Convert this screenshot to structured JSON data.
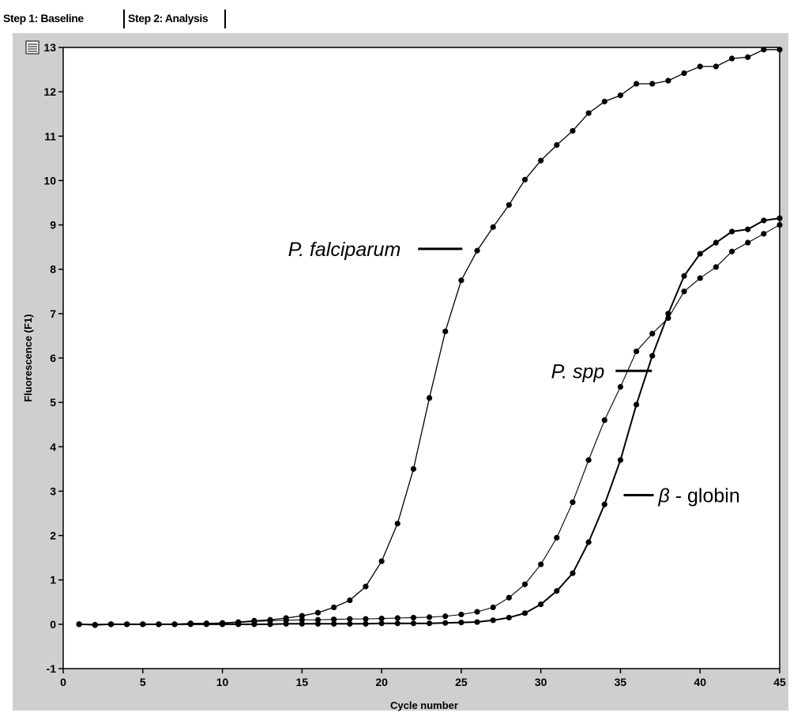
{
  "tabs": [
    {
      "label": "Step 1: Baseline"
    },
    {
      "label": "Step 2: Analysis"
    }
  ],
  "colors": {
    "plot_bg": "#ffffff",
    "frame_bg": "#cfcfcf",
    "line": "#000000"
  },
  "chart_data": {
    "type": "line",
    "title": "",
    "xlabel": "Cycle number",
    "ylabel": "Fluorescence (F1)",
    "xlim": [
      0,
      45
    ],
    "ylim": [
      -1,
      13
    ],
    "xticks": [
      0,
      5,
      10,
      15,
      20,
      25,
      30,
      35,
      40,
      45
    ],
    "yticks": [
      -1,
      0,
      1,
      2,
      3,
      4,
      5,
      6,
      7,
      8,
      9,
      10,
      11,
      12,
      13
    ],
    "grid": false,
    "x": [
      1,
      2,
      3,
      4,
      5,
      6,
      7,
      8,
      9,
      10,
      11,
      12,
      13,
      14,
      15,
      16,
      17,
      18,
      19,
      20,
      21,
      22,
      23,
      24,
      25,
      26,
      27,
      28,
      29,
      30,
      31,
      32,
      33,
      34,
      35,
      36,
      37,
      38,
      39,
      40,
      41,
      42,
      43,
      44,
      45
    ],
    "series": [
      {
        "name": "P. falciparum",
        "values": [
          0.0,
          -0.02,
          0.0,
          0.0,
          0.0,
          0.0,
          0.0,
          0.02,
          0.02,
          0.03,
          0.05,
          0.08,
          0.1,
          0.14,
          0.19,
          0.26,
          0.38,
          0.54,
          0.85,
          1.42,
          2.27,
          3.5,
          5.1,
          6.6,
          7.75,
          8.42,
          8.95,
          9.45,
          10.02,
          10.45,
          10.8,
          11.12,
          11.52,
          11.78,
          11.92,
          12.18,
          12.18,
          12.25,
          12.42,
          12.57,
          12.57,
          12.75,
          12.78,
          12.95,
          12.95
        ]
      },
      {
        "name": "P. spp",
        "values": [
          0.0,
          -0.01,
          0.0,
          0.0,
          0.0,
          0.0,
          0.0,
          0.02,
          0.02,
          0.02,
          0.04,
          0.06,
          0.08,
          0.09,
          0.1,
          0.1,
          0.11,
          0.12,
          0.12,
          0.13,
          0.14,
          0.15,
          0.16,
          0.18,
          0.22,
          0.28,
          0.38,
          0.6,
          0.9,
          1.35,
          1.95,
          2.75,
          3.7,
          4.6,
          5.35,
          6.15,
          6.55,
          6.9,
          7.5,
          7.8,
          8.05,
          8.4,
          8.6,
          8.8,
          9.0
        ]
      },
      {
        "name": "β - globin",
        "values": [
          0.0,
          -0.01,
          0.0,
          0.0,
          0.0,
          0.0,
          0.0,
          0.0,
          0.0,
          0.0,
          0.0,
          0.0,
          0.0,
          0.01,
          0.01,
          0.01,
          0.01,
          0.01,
          0.01,
          0.02,
          0.02,
          0.02,
          0.02,
          0.03,
          0.04,
          0.05,
          0.09,
          0.15,
          0.25,
          0.45,
          0.75,
          1.15,
          1.85,
          2.7,
          3.7,
          4.95,
          6.05,
          7.0,
          7.85,
          8.35,
          8.6,
          8.85,
          8.9,
          9.1,
          9.15
        ]
      }
    ],
    "annotations": [
      {
        "text": "P. falciparum",
        "italic": true,
        "x": 21.2,
        "y": 8.3
      },
      {
        "text": "P. spp",
        "italic": true,
        "x": 34.0,
        "y": 5.55
      },
      {
        "italic_part": "β",
        "text": " - globin",
        "x": 35.4,
        "y": 2.75
      }
    ]
  }
}
